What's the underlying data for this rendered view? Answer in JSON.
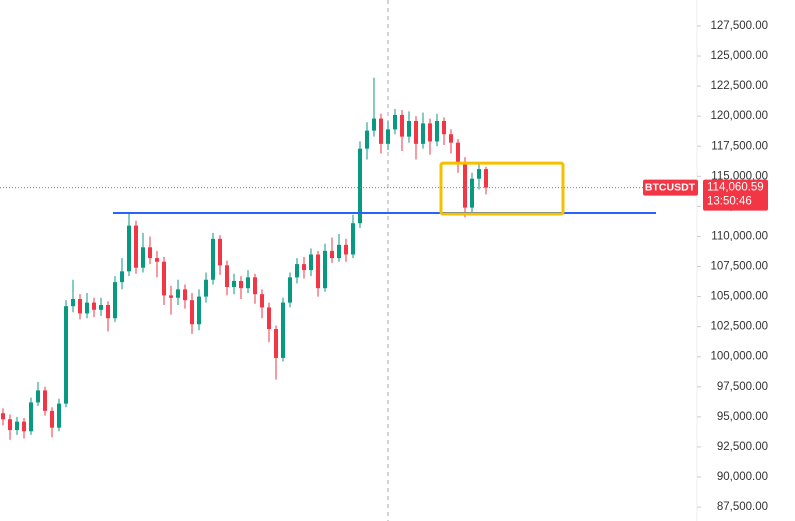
{
  "chart_data": {
    "type": "candlestick",
    "symbol": "BTCUSDT",
    "open": [
      95300,
      94800,
      93900,
      94600,
      93800,
      96200,
      97200,
      95500,
      94100,
      96100,
      104200,
      104800,
      103600,
      104500,
      103900,
      104300,
      103200,
      106200,
      107100,
      110900,
      107400,
      109100,
      108200,
      107900,
      105100,
      104900,
      105600,
      104700,
      102700,
      105000,
      106400,
      109800,
      107600,
      105800,
      106300,
      105700,
      106600,
      105200,
      104100,
      102300,
      99900,
      104500,
      106600,
      107700,
      107200,
      108500,
      105700,
      108800,
      108200,
      109300,
      108500,
      111100,
      117300,
      118800,
      119800,
      117700,
      118900,
      120100,
      118300,
      119600,
      117700,
      119400,
      117900,
      119600,
      118500,
      117800,
      116200,
      112400,
      114800,
      115600
    ],
    "high": [
      95700,
      95200,
      95000,
      94900,
      96600,
      97900,
      97500,
      95800,
      96500,
      104700,
      106400,
      105200,
      105300,
      104900,
      104900,
      104600,
      106700,
      108200,
      111900,
      111300,
      110300,
      110000,
      108800,
      108300,
      105900,
      106400,
      106000,
      105300,
      105600,
      107000,
      110300,
      110100,
      108000,
      106900,
      106700,
      107200,
      106900,
      105600,
      104500,
      102600,
      104900,
      107000,
      108200,
      108300,
      109000,
      108800,
      109400,
      109900,
      110200,
      109800,
      111800,
      117900,
      119500,
      123200,
      120200,
      119600,
      120600,
      120500,
      120400,
      120000,
      120300,
      119800,
      120200,
      119900,
      118900,
      118100,
      116600,
      115300,
      116100,
      115800
    ],
    "low": [
      94300,
      93100,
      93500,
      93200,
      93500,
      95900,
      95100,
      93300,
      93800,
      95800,
      103700,
      103100,
      103200,
      103300,
      103400,
      102100,
      102900,
      105600,
      106700,
      106900,
      107000,
      107700,
      106600,
      104300,
      103500,
      104300,
      104000,
      101900,
      102200,
      104500,
      106000,
      106800,
      105100,
      105200,
      104800,
      105300,
      104400,
      103200,
      101200,
      98100,
      99600,
      104100,
      106100,
      106500,
      106700,
      105000,
      105400,
      107800,
      107900,
      107900,
      108200,
      110700,
      116400,
      118300,
      116900,
      117200,
      118500,
      117100,
      117800,
      116400,
      117300,
      116800,
      117500,
      117600,
      116900,
      115300,
      111600,
      111800,
      113900,
      113500
    ],
    "close": [
      94800,
      93900,
      94600,
      93800,
      96200,
      97200,
      95500,
      94100,
      96100,
      104200,
      104800,
      103600,
      104500,
      103900,
      104300,
      103200,
      106200,
      107100,
      110900,
      107400,
      109100,
      108200,
      107900,
      105100,
      104900,
      105600,
      104700,
      102700,
      105000,
      106400,
      109800,
      107600,
      105800,
      106300,
      105700,
      106600,
      105200,
      104100,
      102300,
      99900,
      104500,
      106600,
      107700,
      107200,
      108500,
      105700,
      108800,
      108200,
      109300,
      108500,
      111100,
      117300,
      118800,
      119800,
      117700,
      118900,
      120100,
      118300,
      119600,
      117700,
      119400,
      117900,
      119600,
      118500,
      117800,
      116200,
      112400,
      114800,
      115600,
      114060.59
    ],
    "up_color": "#089981",
    "down_color": "#f23645",
    "ylim": [
      86340,
      129660
    ],
    "yticks": [
      {
        "value": 87500,
        "label": "87,500.00"
      },
      {
        "value": 90000,
        "label": "90,000.00"
      },
      {
        "value": 92500,
        "label": "92,500.00"
      },
      {
        "value": 95000,
        "label": "95,000.00"
      },
      {
        "value": 97500,
        "label": "97,500.00"
      },
      {
        "value": 100000,
        "label": "100,000.00"
      },
      {
        "value": 102500,
        "label": "102,500.00"
      },
      {
        "value": 105000,
        "label": "105,000.00"
      },
      {
        "value": 107500,
        "label": "107,500.00"
      },
      {
        "value": 110000,
        "label": "110,000.00"
      },
      {
        "value": 112500,
        "label": "112,500.00"
      },
      {
        "value": 115000,
        "label": "115,000.00"
      },
      {
        "value": 117500,
        "label": "117,500.00"
      },
      {
        "value": 120000,
        "label": "120,000.00"
      },
      {
        "value": 122500,
        "label": "122,500.00"
      },
      {
        "value": 125000,
        "label": "125,000.00"
      },
      {
        "value": 127500,
        "label": "127,500.00"
      }
    ],
    "last_price": {
      "value": 114060.59,
      "label": "114,060.59"
    },
    "countdown": "13:50:46",
    "support_line": {
      "value": 111950,
      "color": "#2962ff"
    },
    "highlight_box": {
      "values": [
        111870,
        116100
      ],
      "color": "#f5c000"
    }
  }
}
